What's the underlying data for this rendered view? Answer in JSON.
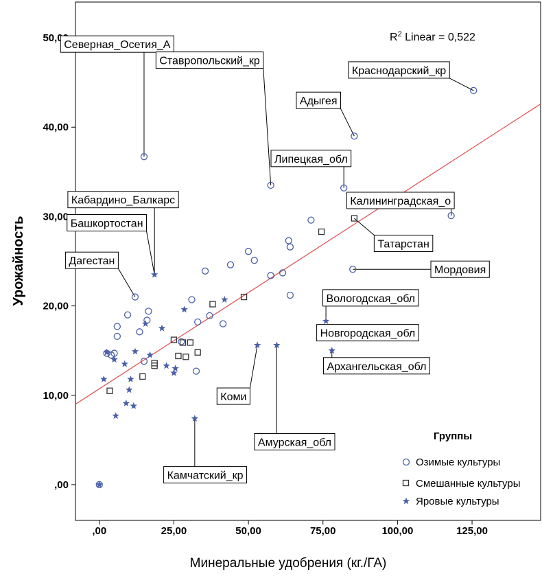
{
  "chart_data": {
    "type": "scatter",
    "xlabel": "Минеральные удобрения (кг./ГА)",
    "ylabel": "Урожайность",
    "xlim": [
      -8,
      148
    ],
    "ylim": [
      -4,
      54
    ],
    "x_ticks": [
      0,
      25,
      50,
      75,
      100,
      125
    ],
    "x_tick_labels": [
      ",00",
      "25,00",
      "50,00",
      "75,00",
      "100,00",
      "125,00"
    ],
    "y_ticks": [
      0,
      10,
      20,
      30,
      40,
      50
    ],
    "y_tick_labels": [
      ",00",
      "10,00",
      "20,00",
      "30,00",
      "40,00",
      "50,00"
    ],
    "fit_line": {
      "label_main": "R",
      "label_sup": "2",
      "label_rest": " Linear = 0,522",
      "x": [
        -8,
        148
      ],
      "y": [
        9.0,
        42.6
      ]
    },
    "legend": {
      "title": "Группы",
      "position": "bottom-right",
      "items": [
        {
          "name": "Озимые культуры",
          "marker": "circle",
          "color": "#4a5fa8"
        },
        {
          "name": "Смешанные культуры",
          "marker": "square",
          "color": "#333333"
        },
        {
          "name": "Яровые культуры",
          "marker": "star",
          "color": "#4a5fa8"
        }
      ]
    },
    "series": [
      {
        "name": "Озимые культуры",
        "marker": "circle",
        "points": [
          [
            125.5,
            44.1
          ],
          [
            85.5,
            39.0
          ],
          [
            15.0,
            36.7
          ],
          [
            57.5,
            33.5
          ],
          [
            82.0,
            33.2
          ],
          [
            118.0,
            30.1
          ],
          [
            71.0,
            29.6
          ],
          [
            63.5,
            27.3
          ],
          [
            64.0,
            26.6
          ],
          [
            50.0,
            26.1
          ],
          [
            52.0,
            25.1
          ],
          [
            44.0,
            24.6
          ],
          [
            85.0,
            24.1
          ],
          [
            35.5,
            23.9
          ],
          [
            57.5,
            23.4
          ],
          [
            61.5,
            23.7
          ],
          [
            64.0,
            21.2
          ],
          [
            12.0,
            21.0
          ],
          [
            31.0,
            20.7
          ],
          [
            16.5,
            19.4
          ],
          [
            9.5,
            19.0
          ],
          [
            37.0,
            18.9
          ],
          [
            16.0,
            18.4
          ],
          [
            33.0,
            18.2
          ],
          [
            41.5,
            18.0
          ],
          [
            6.0,
            17.7
          ],
          [
            13.5,
            17.1
          ],
          [
            6.0,
            16.6
          ],
          [
            27.5,
            16.0
          ],
          [
            80.5,
            17.0
          ],
          [
            2.5,
            14.7
          ],
          [
            4.0,
            14.5
          ],
          [
            5.0,
            14.7
          ],
          [
            15.0,
            13.8
          ],
          [
            32.5,
            12.7
          ],
          [
            0.0,
            0.0
          ]
        ]
      },
      {
        "name": "Смешанные культуры",
        "marker": "square",
        "points": [
          [
            85.5,
            29.8
          ],
          [
            74.5,
            28.3
          ],
          [
            38.0,
            20.2
          ],
          [
            48.5,
            21.0
          ],
          [
            25.0,
            16.2
          ],
          [
            28.0,
            15.9
          ],
          [
            30.5,
            15.9
          ],
          [
            33.0,
            14.8
          ],
          [
            26.5,
            14.4
          ],
          [
            29.0,
            14.3
          ],
          [
            18.5,
            13.6
          ],
          [
            18.5,
            13.3
          ],
          [
            14.5,
            12.1
          ],
          [
            3.5,
            10.5
          ]
        ]
      },
      {
        "name": "Яровые культуры",
        "marker": "star",
        "points": [
          [
            18.5,
            23.5
          ],
          [
            42.0,
            20.7
          ],
          [
            28.5,
            19.6
          ],
          [
            76.0,
            18.3
          ],
          [
            15.5,
            18.0
          ],
          [
            21.0,
            17.5
          ],
          [
            78.0,
            15.0
          ],
          [
            53.0,
            15.6
          ],
          [
            59.5,
            15.6
          ],
          [
            12.0,
            14.9
          ],
          [
            17.0,
            14.5
          ],
          [
            2.5,
            14.8
          ],
          [
            5.0,
            14.0
          ],
          [
            8.5,
            13.5
          ],
          [
            22.5,
            13.3
          ],
          [
            25.5,
            13.0
          ],
          [
            25.0,
            12.5
          ],
          [
            1.5,
            11.8
          ],
          [
            10.5,
            11.8
          ],
          [
            10.0,
            10.6
          ],
          [
            9.0,
            9.1
          ],
          [
            11.5,
            8.8
          ],
          [
            5.5,
            7.7
          ],
          [
            32.0,
            7.4
          ],
          [
            0.0,
            0.0
          ]
        ]
      }
    ],
    "annotations": [
      {
        "text": "Северная_Осетия_А",
        "x": 15.0,
        "y": 36.7,
        "box_x": 6.0,
        "box_y": 49.3
      },
      {
        "text": "Ставропольский_кр",
        "x": 57.5,
        "y": 33.5,
        "box_x": 37.0,
        "box_y": 47.5
      },
      {
        "text": "Краснодарский_кр",
        "x": 125.5,
        "y": 44.1,
        "box_x": 100.5,
        "box_y": 46.4
      },
      {
        "text": "Адыгея",
        "x": 85.5,
        "y": 39.0,
        "box_x": 73.5,
        "box_y": 43.0
      },
      {
        "text": "Липецкая_обл",
        "x": 82.0,
        "y": 33.2,
        "box_x": 71.0,
        "box_y": 36.5
      },
      {
        "text": "Кабардино_Балкарс",
        "x": 18.5,
        "y": 23.5,
        "box_x": 8.0,
        "box_y": 31.9
      },
      {
        "text": "Калининградская_о",
        "x": 118.0,
        "y": 30.1,
        "box_x": 101.0,
        "box_y": 31.8
      },
      {
        "text": "Башкортостан",
        "x": 18.5,
        "y": 23.5,
        "box_x": 2.5,
        "box_y": 29.3
      },
      {
        "text": "Татарстан",
        "x": 85.5,
        "y": 29.8,
        "box_x": 102.0,
        "box_y": 27.0
      },
      {
        "text": "Дагестан",
        "x": 12.0,
        "y": 21.0,
        "box_x": -2.5,
        "box_y": 25.1
      },
      {
        "text": "Мордовия",
        "x": 85.0,
        "y": 24.1,
        "box_x": 121.0,
        "box_y": 24.1
      },
      {
        "text": "Вологодская_обл",
        "x": 76.0,
        "y": 18.3,
        "box_x": 91.0,
        "box_y": 20.9
      },
      {
        "text": "Новгородская_обл",
        "x": 80.5,
        "y": 17.0,
        "box_x": 90.0,
        "box_y": 17.0
      },
      {
        "text": "Архангельская_обл",
        "x": 78.0,
        "y": 15.0,
        "box_x": 93.0,
        "box_y": 13.3
      },
      {
        "text": "Коми",
        "x": 53.0,
        "y": 15.6,
        "box_x": 45.0,
        "box_y": 9.9
      },
      {
        "text": "Амурская_обл",
        "x": 59.5,
        "y": 15.6,
        "box_x": 65.5,
        "box_y": 4.8
      },
      {
        "text": "Камчатский_кр",
        "x": 32.0,
        "y": 7.4,
        "box_x": 35.5,
        "box_y": 1.1
      }
    ]
  }
}
